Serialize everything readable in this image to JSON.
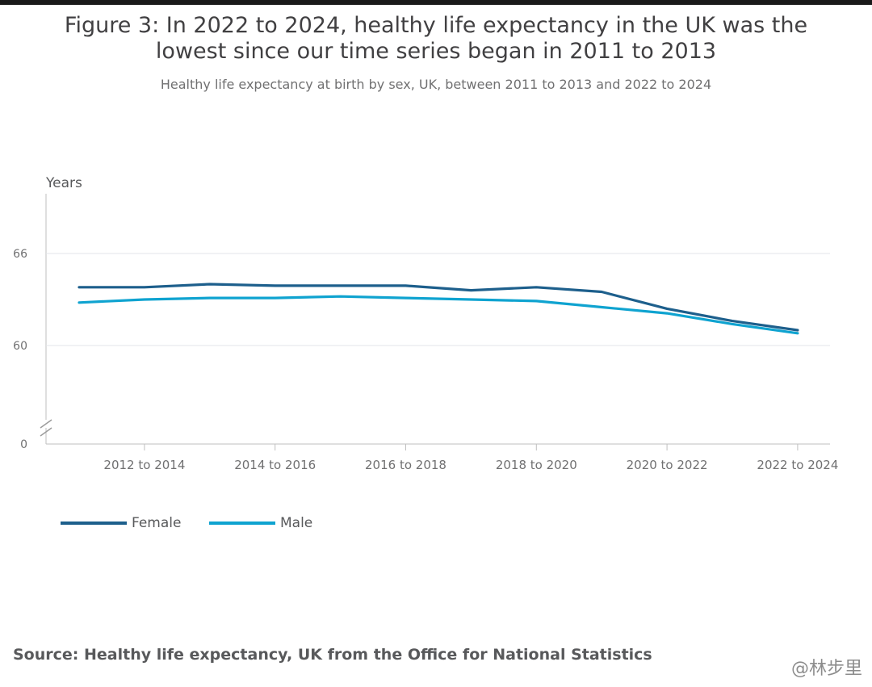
{
  "header": {
    "title": "Figure 3: In 2022 to 2024, healthy life expectancy in the UK was the lowest since our time series began in 2011 to 2013",
    "subtitle": "Healthy life expectancy at birth by sex, UK, between 2011 to 2013 and 2022 to 2024"
  },
  "chart_data": {
    "type": "line",
    "title": "Figure 3: In 2022 to 2024, healthy life expectancy in the UK was the lowest since our time series began in 2011 to 2013",
    "subtitle": "Healthy life expectancy at birth by sex, UK, between 2011 to 2013 and 2022 to 2024",
    "ylabel": "Years",
    "xlabel": "",
    "categories": [
      "2011 to 2013",
      "2012 to 2014",
      "2013 to 2015",
      "2014 to 2016",
      "2015 to 2017",
      "2016 to 2018",
      "2017 to 2019",
      "2018 to 2020",
      "2019 to 2021",
      "2020 to 2022",
      "2021 to 2023",
      "2022 to 2024"
    ],
    "x_tick_labels": [
      "2012 to 2014",
      "2014 to 2016",
      "2016 to 2018",
      "2018 to 2020",
      "2020 to 2022",
      "2022 to 2024"
    ],
    "y_ticks": [
      0,
      60,
      66
    ],
    "y_break": true,
    "grid": true,
    "legend_position": "bottom-left",
    "series": [
      {
        "name": "Female",
        "color": "#1d5f8c",
        "values": [
          63.8,
          63.8,
          64.0,
          63.9,
          63.9,
          63.9,
          63.6,
          63.8,
          63.5,
          62.4,
          61.6,
          61.0
        ]
      },
      {
        "name": "Male",
        "color": "#0fa3d0",
        "values": [
          62.8,
          63.0,
          63.1,
          63.1,
          63.2,
          63.1,
          63.0,
          62.9,
          62.5,
          62.1,
          61.4,
          60.8
        ]
      }
    ]
  },
  "legend": {
    "female": "Female",
    "male": "Male"
  },
  "source": "Source: Healthy life expectancy, UK from the Office for National Statistics",
  "watermark": "@林步里"
}
